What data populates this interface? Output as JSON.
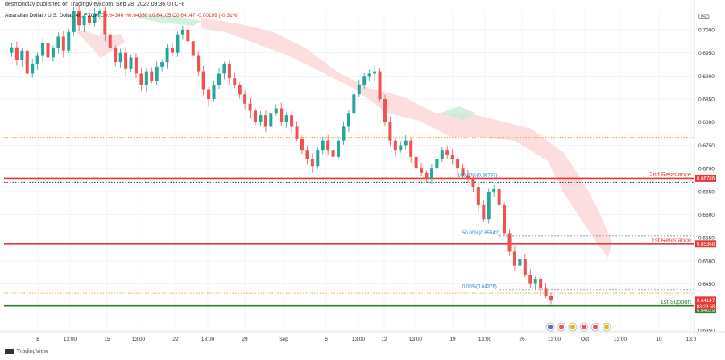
{
  "header": {
    "published": "desmondizv published on TradingView.com, Sep 28, 2022 09:36 UTC+8",
    "symbol": "Australian Dollar / U.S. Dollar, 4h, FXCM",
    "ohlc": "O0.64346  H0.64350  L0.64105  C0.64147  -0.00199 (-0.31%)"
  },
  "footer": {
    "brand": "TradingView"
  },
  "colors": {
    "up": "#26a69a",
    "down": "#ef5350",
    "cloud_bear": "#fcd3d3",
    "cloud_bull": "#c8ebd6",
    "resistance": "#e53935",
    "support": "#2e7d32",
    "fib": "#1e88e5",
    "orange": "#f5a623",
    "black_dotted": "#333333"
  },
  "chart_data": {
    "type": "candlestick",
    "title": "Australian Dollar / U.S. Dollar, 4h, FXCM",
    "currency": "USD",
    "ylim": [
      0.635,
      0.704
    ],
    "y_ticks": [
      0.7,
      0.695,
      0.69,
      0.685,
      0.68,
      0.675,
      0.67,
      0.665,
      0.66,
      0.655,
      0.65,
      0.645,
      0.635
    ],
    "x_ticks": [
      "8",
      "13:00",
      "15",
      "13:00",
      "22",
      "13:00",
      "29",
      "Sep",
      "6",
      "13:00",
      "12",
      "13:00",
      "19",
      "13:00",
      "26",
      "13:00",
      "Oct",
      "13:00",
      "10",
      "13:0"
    ],
    "levels": [
      {
        "name": "2nd Resistance",
        "value": 0.66786,
        "label": "0.66786",
        "kind": "resistance"
      },
      {
        "name": "1st Resistance",
        "value": 0.65368,
        "label": "0.65368",
        "kind": "resistance"
      },
      {
        "name": "1st Support",
        "value": 0.64029,
        "label": "0.64029",
        "kind": "support"
      }
    ],
    "fib_labels": [
      {
        "text": "100.00%(0.66787)",
        "value": 0.66787
      },
      {
        "text": "50.00%(0.65542)",
        "value": 0.65542
      },
      {
        "text": "0.00%(0.64376)",
        "value": 0.64376
      }
    ],
    "last_price": {
      "label": "0.64147",
      "value": 0.64147,
      "timer": "03:23:58"
    },
    "dotted_lines": [
      {
        "value": 0.6767,
        "color": "orange"
      },
      {
        "value": 0.667,
        "color": "black"
      },
      {
        "value": 0.643,
        "color": "orange"
      }
    ],
    "close_path": [
      0.695,
      0.6962,
      0.6935,
      0.6955,
      0.6905,
      0.6925,
      0.6945,
      0.6972,
      0.694,
      0.696,
      0.6985,
      0.6955,
      0.6995,
      0.704,
      0.701,
      0.703,
      0.7015,
      0.7035,
      0.704,
      0.699,
      0.696,
      0.693,
      0.695,
      0.6915,
      0.694,
      0.6905,
      0.688,
      0.691,
      0.689,
      0.692,
      0.693,
      0.696,
      0.695,
      0.699,
      0.7,
      0.6975,
      0.6945,
      0.691,
      0.687,
      0.685,
      0.688,
      0.6905,
      0.6925,
      0.6895,
      0.688,
      0.686,
      0.684,
      0.6825,
      0.68,
      0.6815,
      0.679,
      0.682,
      0.683,
      0.68,
      0.6815,
      0.679,
      0.6765,
      0.674,
      0.672,
      0.6705,
      0.674,
      0.676,
      0.674,
      0.6725,
      0.676,
      0.679,
      0.682,
      0.686,
      0.688,
      0.69,
      0.6905,
      0.691,
      0.685,
      0.68,
      0.676,
      0.674,
      0.675,
      0.676,
      0.6725,
      0.67,
      0.669,
      0.6678,
      0.67,
      0.672,
      0.674,
      0.673,
      0.672,
      0.67,
      0.6685,
      0.6678,
      0.666,
      0.662,
      0.659,
      0.665,
      0.6655,
      0.662,
      0.656,
      0.652,
      0.649,
      0.6505,
      0.647,
      0.645,
      0.646,
      0.644,
      0.6425,
      0.6414
    ]
  }
}
